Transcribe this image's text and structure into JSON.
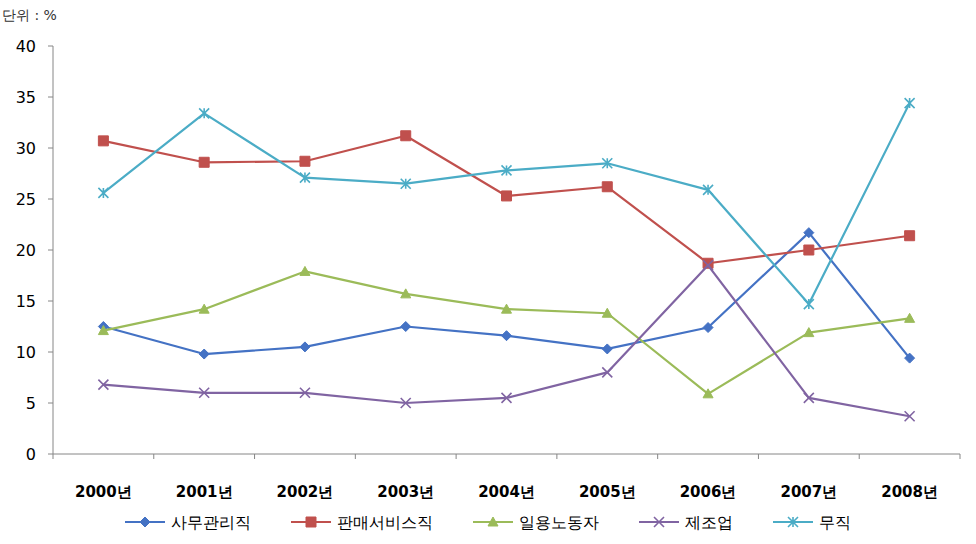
{
  "chart_data": {
    "type": "line",
    "y_label": "단위 : %",
    "categories": [
      "2000년",
      "2001년",
      "2002년",
      "2003년",
      "2004년",
      "2005년",
      "2006년",
      "2007년",
      "2008년"
    ],
    "series": [
      {
        "name": "사무관리직",
        "color": "#4472c4",
        "marker": "diamond",
        "values": [
          12.5,
          9.8,
          10.5,
          12.5,
          11.6,
          10.3,
          12.4,
          21.7,
          9.4
        ]
      },
      {
        "name": "판매서비스직",
        "color": "#c0504d",
        "marker": "square",
        "values": [
          30.7,
          28.6,
          28.7,
          31.2,
          25.3,
          26.2,
          18.7,
          20.0,
          21.4
        ]
      },
      {
        "name": "일용노동자",
        "color": "#9bbb59",
        "marker": "triangle",
        "values": [
          12.1,
          14.2,
          17.9,
          15.7,
          14.2,
          13.8,
          5.9,
          11.9,
          13.3
        ]
      },
      {
        "name": "제조업",
        "color": "#8064a2",
        "marker": "x",
        "values": [
          6.8,
          6.0,
          6.0,
          5.0,
          5.5,
          8.0,
          18.5,
          5.5,
          3.7
        ]
      },
      {
        "name": "무직",
        "color": "#4bacc6",
        "marker": "star",
        "values": [
          25.6,
          33.4,
          27.1,
          26.5,
          27.8,
          28.5,
          25.9,
          14.7,
          34.4
        ]
      }
    ],
    "ylim": [
      0,
      40
    ],
    "yticks": [
      0,
      5,
      10,
      15,
      20,
      25,
      30,
      35,
      40
    ],
    "grid": false,
    "legend": "bottom"
  }
}
